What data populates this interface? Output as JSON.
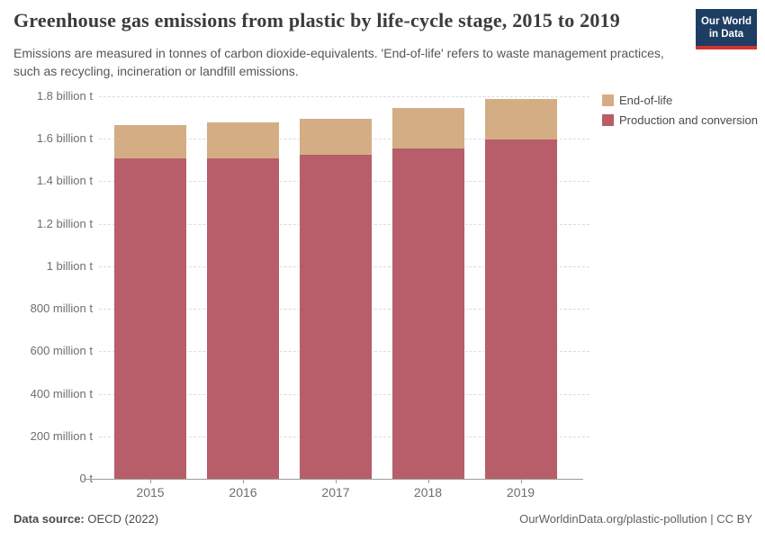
{
  "header": {
    "title": "Greenhouse gas emissions from plastic by life-cycle stage, 2015 to 2019",
    "subtitle": "Emissions are measured in tonnes of carbon dioxide-equivalents. 'End-of-life' refers to waste management practices, such as recycling, incineration or landfill emissions."
  },
  "logo": {
    "line1": "Our World",
    "line2": "in Data",
    "bg_color": "#1d3d63",
    "stripe_color": "#d0342e"
  },
  "legend": {
    "items": [
      {
        "label": "End-of-life",
        "color": "#D4AD85"
      },
      {
        "label": "Production and conversion",
        "color": "#B75E6A"
      }
    ]
  },
  "footer": {
    "source_label": "Data source:",
    "source_value": " OECD (2022)",
    "link": "OurWorldinData.org/plastic-pollution | CC BY"
  },
  "chart_data": {
    "type": "bar",
    "subtype": "stacked",
    "title": "Greenhouse gas emissions from plastic by life-cycle stage, 2015 to 2019",
    "categories": [
      "2015",
      "2016",
      "2017",
      "2018",
      "2019"
    ],
    "series": [
      {
        "name": "Production and conversion",
        "color": "#B75E6A",
        "values_billion_t": [
          1.51,
          1.51,
          1.53,
          1.56,
          1.6
        ]
      },
      {
        "name": "End-of-life",
        "color": "#D4AD85",
        "values_billion_t": [
          0.16,
          0.17,
          0.17,
          0.19,
          0.19
        ]
      }
    ],
    "totals_billion_t": [
      1.67,
      1.68,
      1.7,
      1.75,
      1.79
    ],
    "ylim_billion_t": [
      0,
      1.8
    ],
    "yticks": [
      {
        "value": 0.0,
        "label": "0 t"
      },
      {
        "value": 0.2,
        "label": "200 million t"
      },
      {
        "value": 0.4,
        "label": "400 million t"
      },
      {
        "value": 0.6,
        "label": "600 million t"
      },
      {
        "value": 0.8,
        "label": "800 million t"
      },
      {
        "value": 1.0,
        "label": "1 billion t"
      },
      {
        "value": 1.2,
        "label": "1.2 billion t"
      },
      {
        "value": 1.4,
        "label": "1.4 billion t"
      },
      {
        "value": 1.6,
        "label": "1.6 billion t"
      },
      {
        "value": 1.8,
        "label": "1.8 billion t"
      }
    ],
    "grid": "horizontal-dashed",
    "legend_position": "top-right"
  }
}
